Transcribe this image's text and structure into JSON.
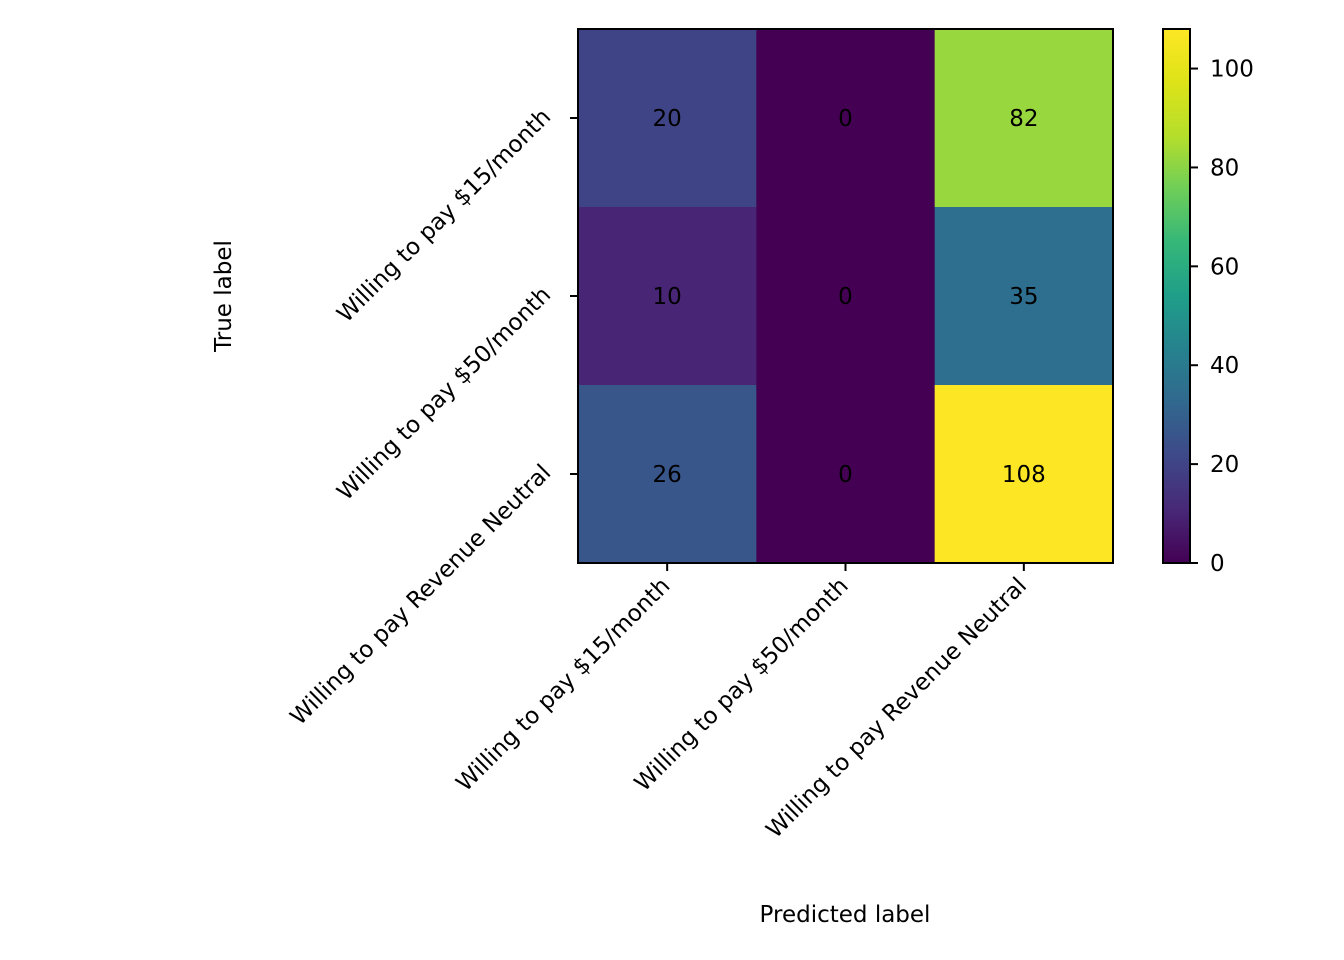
{
  "chart_data": {
    "type": "heatmap",
    "title": "",
    "xlabel": "Predicted label",
    "ylabel": "True label",
    "x_categories": [
      "Willing to pay $15/month",
      "Willing to pay $50/month",
      "Willing to pay Revenue Neutral"
    ],
    "y_categories": [
      "Willing to pay $15/month",
      "Willing to pay $50/month",
      "Willing to pay Revenue Neutral"
    ],
    "matrix": [
      [
        20,
        0,
        82
      ],
      [
        10,
        0,
        35
      ],
      [
        26,
        0,
        108
      ]
    ],
    "colormap": "viridis",
    "colorbar": {
      "range": [
        0,
        108
      ],
      "ticks": [
        0,
        20,
        40,
        60,
        80,
        100
      ],
      "tick_labels": [
        "0",
        "20",
        "40",
        "60",
        "80",
        "100"
      ]
    },
    "text_color_dark": "#440154",
    "text_color_light": "#fde725"
  }
}
